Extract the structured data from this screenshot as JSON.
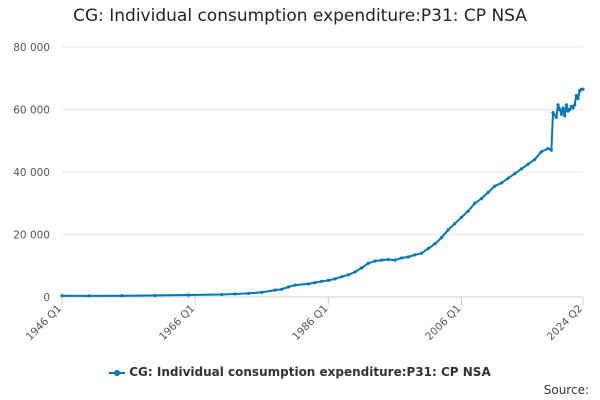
{
  "chart_data": {
    "type": "line",
    "title": "CG: Individual consumption expenditure:P31: CP NSA",
    "xlabel": "",
    "ylabel": "",
    "ylim": [
      0,
      80000
    ],
    "y_ticks": [
      0,
      20000,
      40000,
      60000,
      80000
    ],
    "y_tick_labels": [
      "0",
      "20 000",
      "40 000",
      "60 000",
      "80 000"
    ],
    "x_ticks": [
      1946,
      1966,
      1986,
      2006,
      2024.25
    ],
    "x_tick_labels": [
      "1946 Q1",
      "1966 Q1",
      "1986 Q1",
      "2006 Q1",
      "2024 Q2"
    ],
    "xlim": [
      1946,
      2024.25
    ],
    "grid": true,
    "legend_position": "bottom",
    "color": "#0077b6",
    "series": [
      {
        "name": "CG: Individual consumption expenditure:P31: CP NSA",
        "x": [
          1946,
          1950,
          1955,
          1960,
          1965,
          1970,
          1972,
          1974,
          1976,
          1978,
          1979,
          1980,
          1981,
          1983,
          1984,
          1985,
          1986,
          1987,
          1988,
          1989,
          1990,
          1991,
          1992,
          1993,
          1994,
          1995,
          1996,
          1997,
          1998,
          1999,
          2000,
          2001,
          2002,
          2003,
          2004,
          2005,
          2006,
          2007,
          2008,
          2009,
          2010,
          2011,
          2012,
          2013,
          2014,
          2015,
          2016,
          2017,
          2018,
          2019,
          2019.5,
          2019.75,
          2020.25,
          2020.5,
          2020.75,
          2021,
          2021.25,
          2021.5,
          2021.75,
          2022,
          2022.25,
          2022.5,
          2022.75,
          2023,
          2023.25,
          2023.5,
          2023.75,
          2024,
          2024.25
        ],
        "values": [
          400,
          350,
          400,
          500,
          650,
          800,
          950,
          1150,
          1500,
          2200,
          2500,
          3200,
          3800,
          4200,
          4600,
          5000,
          5300,
          5800,
          6500,
          7100,
          8000,
          9300,
          10800,
          11500,
          11800,
          12000,
          11800,
          12500,
          12800,
          13500,
          14000,
          15500,
          17000,
          19000,
          21500,
          23500,
          25500,
          27500,
          30000,
          31500,
          33500,
          35500,
          36500,
          38000,
          39500,
          41000,
          42500,
          44000,
          46500,
          47500,
          47000,
          59000,
          57500,
          61500,
          60000,
          58500,
          60500,
          58000,
          61500,
          59500,
          60000,
          61000,
          60500,
          61500,
          64500,
          63500,
          66000,
          66500,
          66500
        ]
      }
    ]
  },
  "legend": {
    "label": "CG: Individual consumption expenditure:P31: CP NSA"
  },
  "footer": {
    "source_label": "Source:"
  }
}
